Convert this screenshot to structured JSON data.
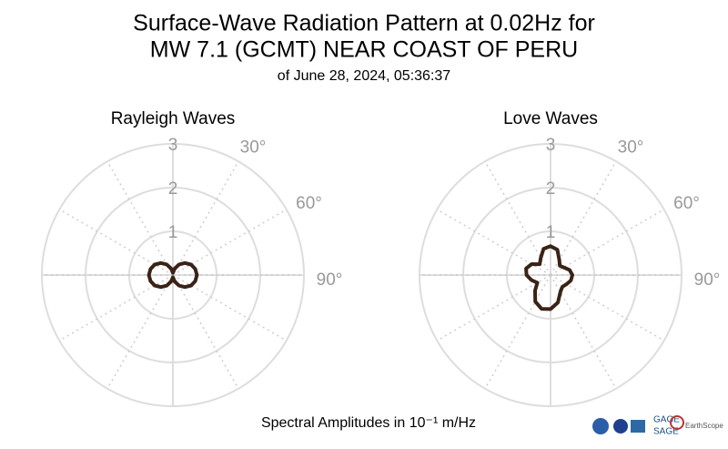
{
  "title": [
    "Surface-Wave Radiation Pattern at 0.02Hz for",
    "MW 7.1 (GCMT) NEAR COAST OF PERU"
  ],
  "subtitle": "of June 28, 2024, 05:36:37",
  "footer": "Spectral Amplitudes in 10⁻¹ m/Hz",
  "logos": [
    "GAGE",
    "SAGE",
    "EarthScope"
  ],
  "chart_data": [
    {
      "type": "polar",
      "title": "Rayleigh Waves",
      "color": "#3a2316",
      "theta": [
        0,
        15,
        30,
        45,
        60,
        75,
        90,
        105,
        120,
        135,
        150,
        165,
        180,
        195,
        210,
        225,
        240,
        255,
        270,
        285,
        300,
        315,
        330,
        345
      ],
      "values": [
        0.05,
        0.15,
        0.28,
        0.39,
        0.48,
        0.53,
        0.55,
        0.53,
        0.48,
        0.39,
        0.28,
        0.15,
        0.05,
        0.15,
        0.28,
        0.39,
        0.48,
        0.53,
        0.55,
        0.53,
        0.48,
        0.39,
        0.28,
        0.15
      ],
      "rlim": [
        0,
        3
      ],
      "rticks": [
        1,
        2,
        3
      ],
      "thetaticks": [
        {
          "value": 30,
          "label": "30°"
        },
        {
          "value": 60,
          "label": "60°"
        },
        {
          "value": 90,
          "label": "90°"
        }
      ]
    },
    {
      "type": "polar",
      "title": "Love Waves",
      "color": "#3a2316",
      "theta": [
        0,
        15,
        30,
        45,
        60,
        75,
        90,
        105,
        120,
        135,
        150,
        165,
        180,
        195,
        210,
        225,
        240,
        255,
        270,
        285,
        300,
        315,
        330,
        345
      ],
      "values": [
        0.66,
        0.6,
        0.4,
        0.3,
        0.35,
        0.45,
        0.5,
        0.48,
        0.42,
        0.38,
        0.45,
        0.65,
        0.78,
        0.8,
        0.7,
        0.5,
        0.35,
        0.45,
        0.55,
        0.58,
        0.5,
        0.35,
        0.45,
        0.62
      ],
      "rlim": [
        0,
        3
      ],
      "rticks": [
        1,
        2,
        3
      ],
      "thetaticks": [
        {
          "value": 30,
          "label": "30°"
        },
        {
          "value": 60,
          "label": "60°"
        },
        {
          "value": 90,
          "label": "90°"
        }
      ]
    }
  ]
}
